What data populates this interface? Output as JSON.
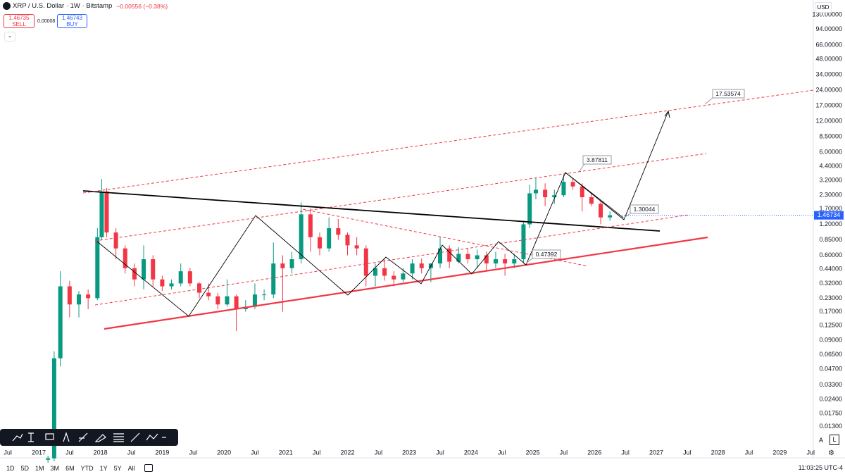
{
  "header": {
    "symbol": "XRP / U.S. Dollar · 1W · Bitstamp",
    "change": "−0.00556 (−0.38%)",
    "sell_price": "1.46735",
    "sell": "SELL",
    "spread": "0.00008",
    "buy_price": "1.46743",
    "buy": "BUY"
  },
  "currency": "USD",
  "chart_data": {
    "type": "candlestick",
    "log_scale": true,
    "up_color": "#089981",
    "down_color": "#f23645",
    "x": [
      2017.15,
      2017.25,
      2017.35,
      2017.5,
      2017.65,
      2017.8,
      2017.95,
      2018.02,
      2018.1,
      2018.25,
      2018.4,
      2018.55,
      2018.7,
      2018.85,
      2019.0,
      2019.15,
      2019.3,
      2019.45,
      2019.6,
      2019.75,
      2019.9,
      2020.05,
      2020.2,
      2020.35,
      2020.5,
      2020.65,
      2020.8,
      2020.95,
      2021.1,
      2021.25,
      2021.4,
      2021.55,
      2021.7,
      2021.85,
      2022.0,
      2022.15,
      2022.3,
      2022.45,
      2022.6,
      2022.75,
      2022.9,
      2023.05,
      2023.2,
      2023.35,
      2023.5,
      2023.65,
      2023.8,
      2023.95,
      2024.1,
      2024.25,
      2024.4,
      2024.55,
      2024.7,
      2024.85,
      2024.95,
      2025.05,
      2025.2,
      2025.35,
      2025.5,
      2025.65,
      2025.8,
      2025.95,
      2026.1,
      2026.25
    ],
    "open": [
      0.0062,
      0.0064,
      0.06,
      0.3,
      0.2,
      0.25,
      0.23,
      0.9,
      2.5,
      1.0,
      0.7,
      0.45,
      0.35,
      0.55,
      0.35,
      0.3,
      0.32,
      0.42,
      0.32,
      0.26,
      0.24,
      0.2,
      0.24,
      0.18,
      0.19,
      0.25,
      0.25,
      0.5,
      0.45,
      0.55,
      1.5,
      0.9,
      0.7,
      1.1,
      0.95,
      0.75,
      0.7,
      0.38,
      0.45,
      0.38,
      0.35,
      0.4,
      0.5,
      0.45,
      0.5,
      0.7,
      0.52,
      0.62,
      0.55,
      0.6,
      0.5,
      0.55,
      0.5,
      0.55,
      1.2,
      2.4,
      2.6,
      2.2,
      2.3,
      3.1,
      2.8,
      2.2,
      1.9,
      1.4
    ],
    "high": [
      0.0068,
      0.07,
      0.42,
      0.34,
      0.27,
      0.28,
      1.1,
      3.3,
      2.7,
      1.1,
      0.75,
      0.5,
      0.75,
      0.6,
      0.38,
      0.35,
      0.5,
      0.45,
      0.33,
      0.32,
      0.26,
      0.35,
      0.25,
      0.22,
      0.32,
      0.28,
      0.8,
      0.6,
      0.65,
      1.96,
      1.7,
      1.0,
      1.4,
      1.35,
      1.0,
      0.9,
      0.75,
      0.5,
      0.55,
      0.42,
      0.45,
      0.55,
      0.56,
      0.5,
      0.9,
      0.75,
      0.72,
      0.7,
      0.68,
      0.65,
      0.65,
      0.62,
      0.62,
      1.3,
      2.9,
      3.4,
      3.0,
      2.6,
      3.66,
      3.4,
      3.0,
      2.4,
      2.0,
      1.6
    ],
    "low": [
      0.0058,
      0.006,
      0.05,
      0.15,
      0.15,
      0.18,
      0.22,
      0.85,
      0.9,
      0.55,
      0.4,
      0.3,
      0.28,
      0.3,
      0.27,
      0.28,
      0.3,
      0.3,
      0.23,
      0.22,
      0.18,
      0.19,
      0.11,
      0.17,
      0.18,
      0.22,
      0.23,
      0.17,
      0.4,
      0.5,
      0.65,
      0.6,
      0.65,
      0.85,
      0.6,
      0.6,
      0.3,
      0.3,
      0.34,
      0.3,
      0.33,
      0.35,
      0.4,
      0.33,
      0.45,
      0.45,
      0.5,
      0.5,
      0.45,
      0.42,
      0.45,
      0.38,
      0.45,
      0.5,
      1.1,
      2.1,
      1.8,
      1.9,
      2.2,
      2.6,
      1.6,
      1.8,
      1.2,
      1.3
    ],
    "close": [
      0.0064,
      0.06,
      0.3,
      0.2,
      0.25,
      0.23,
      0.9,
      2.5,
      1.0,
      0.7,
      0.45,
      0.35,
      0.55,
      0.35,
      0.3,
      0.32,
      0.42,
      0.32,
      0.26,
      0.24,
      0.2,
      0.24,
      0.18,
      0.19,
      0.25,
      0.25,
      0.5,
      0.45,
      0.55,
      1.5,
      0.9,
      0.7,
      1.1,
      0.95,
      0.75,
      0.7,
      0.38,
      0.45,
      0.38,
      0.35,
      0.4,
      0.5,
      0.45,
      0.5,
      0.7,
      0.52,
      0.62,
      0.55,
      0.6,
      0.5,
      0.55,
      0.5,
      0.55,
      1.2,
      2.4,
      2.6,
      2.2,
      2.3,
      3.1,
      2.8,
      2.2,
      1.9,
      1.4,
      1.47
    ],
    "xlim": [
      2016.373,
      2029.543
    ],
    "xticks": [
      {
        "value": 2016.5,
        "label": "Jul"
      },
      2017,
      {
        "value": 2017.5,
        "label": "Jul"
      },
      2018,
      {
        "value": 2018.5,
        "label": "Jul"
      },
      2019,
      {
        "value": 2019.5,
        "label": "Jul"
      },
      2020,
      {
        "value": 2020.5,
        "label": "Jul"
      },
      2021,
      {
        "value": 2021.5,
        "label": "Jul"
      },
      2022,
      {
        "value": 2022.5,
        "label": "Jul"
      },
      2023,
      {
        "value": 2023.5,
        "label": "Jul"
      },
      2024,
      {
        "value": 2024.5,
        "label": "Jul"
      },
      2025,
      {
        "value": 2025.5,
        "label": "Jul"
      },
      2026,
      {
        "value": 2026.5,
        "label": "Jul"
      },
      2027,
      {
        "value": 2027.5,
        "label": "Jul"
      },
      2028,
      {
        "value": 2028.5,
        "label": "Jul"
      },
      2029,
      {
        "value": 2029.5,
        "label": "Jul"
      }
    ],
    "ylim": [
      0.00669,
      181
    ],
    "yticks": [
      {
        "value": 130,
        "label": "130.00000"
      },
      {
        "value": 94,
        "label": "94.00000"
      },
      {
        "value": 66,
        "label": "66.00000"
      },
      {
        "value": 48,
        "label": "48.00000"
      },
      {
        "value": 34,
        "label": "34.00000"
      },
      {
        "value": 24,
        "label": "24.00000"
      },
      {
        "value": 17,
        "label": "17.00000"
      },
      {
        "value": 12,
        "label": "12.00000"
      },
      {
        "value": 8.5,
        "label": "8.50000"
      },
      {
        "value": 6,
        "label": "6.00000"
      },
      {
        "value": 4.4,
        "label": "4.40000"
      },
      {
        "value": 3.2,
        "label": "3.20000"
      },
      {
        "value": 2.3,
        "label": "2.30000"
      },
      {
        "value": 1.7,
        "label": "1.70000"
      },
      {
        "value": 1.2,
        "label": "1.20000"
      },
      {
        "value": 0.85,
        "label": "0.85000"
      },
      {
        "value": 0.6,
        "label": "0.60000"
      },
      {
        "value": 0.44,
        "label": "0.44000"
      },
      {
        "value": 0.32,
        "label": "0.32000"
      },
      {
        "value": 0.23,
        "label": "0.23000"
      },
      {
        "value": 0.17,
        "label": "0.17000"
      },
      {
        "value": 0.125,
        "label": "0.12500"
      },
      {
        "value": 0.09,
        "label": "0.09000"
      },
      {
        "value": 0.065,
        "label": "0.06500"
      },
      {
        "value": 0.047,
        "label": "0.04700"
      },
      {
        "value": 0.033,
        "label": "0.03300"
      },
      {
        "value": 0.024,
        "label": "0.02400"
      },
      {
        "value": 0.0175,
        "label": "0.01750"
      },
      {
        "value": 0.013,
        "label": "0.01300"
      }
    ],
    "last_price": 1.46734,
    "annotations": [
      17.53574,
      3.87811,
      1.30044,
      0.47392
    ]
  },
  "footer": {
    "ranges": [
      "1D",
      "5D",
      "1M",
      "3M",
      "6M",
      "YTD",
      "1Y",
      "5Y",
      "All"
    ],
    "clock": "11:03:25 UTC-4"
  },
  "scale_buttons": [
    "A",
    "L"
  ]
}
